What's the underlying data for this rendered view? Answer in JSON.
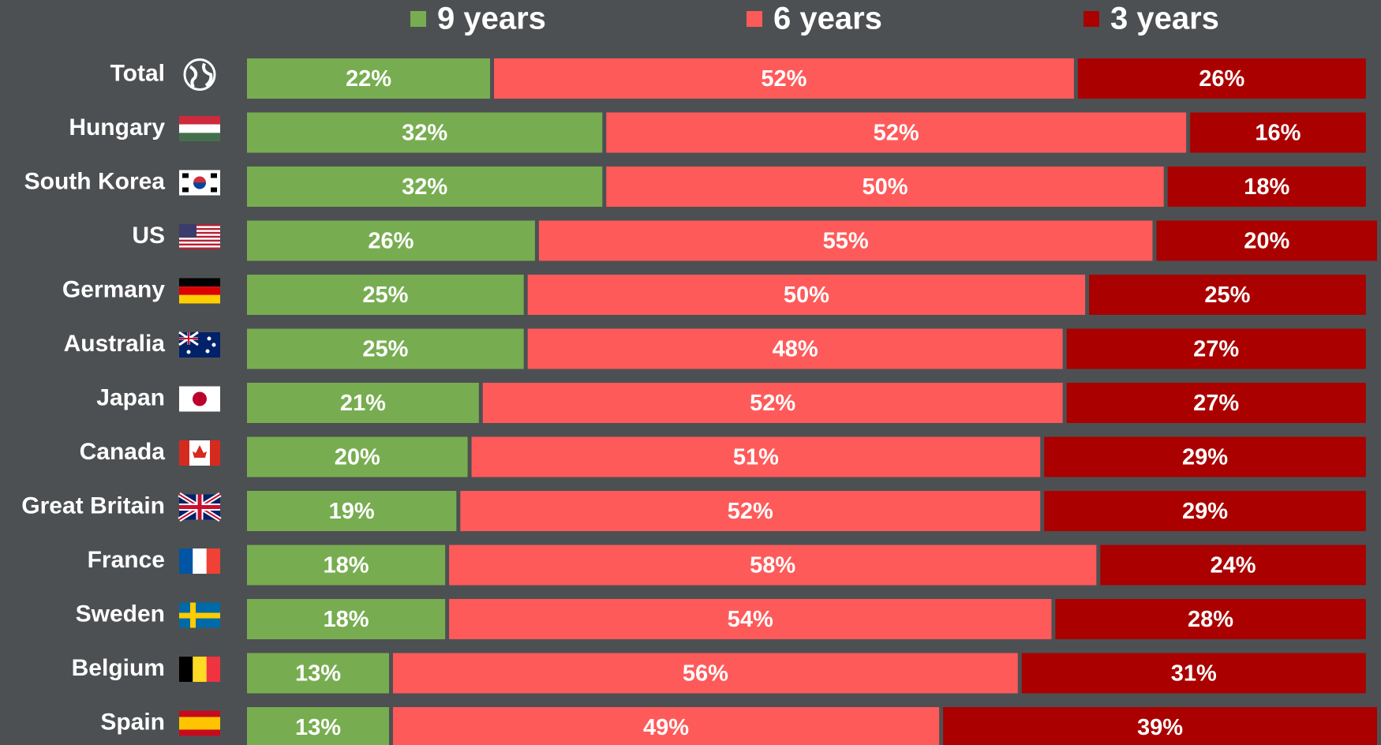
{
  "chart_data": {
    "type": "stacked-bar-horizontal",
    "categories": [
      "Total",
      "Hungary",
      "South Korea",
      "US",
      "Germany",
      "Australia",
      "Japan",
      "Canada",
      "Great Britain",
      "France",
      "Sweden",
      "Belgium",
      "Spain"
    ],
    "series": [
      {
        "name": "9 years",
        "color": "#77ad50",
        "values": [
          22,
          32,
          32,
          26,
          25,
          25,
          21,
          20,
          19,
          18,
          18,
          13,
          13
        ],
        "value_labels": [
          "22%",
          "32%",
          "32%",
          "26%",
          "25%",
          "25%",
          "21%",
          "20%",
          "19%",
          "18%",
          "18%",
          "13%",
          "13%"
        ]
      },
      {
        "name": "6 years",
        "color": "#ff5a5a",
        "values": [
          52,
          52,
          50,
          55,
          50,
          48,
          52,
          51,
          52,
          58,
          54,
          56,
          49
        ],
        "value_labels": [
          "52%",
          "52%",
          "50%",
          "55%",
          "50%",
          "48%",
          "52%",
          "51%",
          "52%",
          "58%",
          "54%",
          "56%",
          "49%"
        ]
      },
      {
        "name": "3 years",
        "color": "#aa0000",
        "values": [
          26,
          16,
          18,
          20,
          25,
          27,
          27,
          29,
          29,
          24,
          28,
          31,
          39
        ],
        "value_labels": [
          "26%",
          "16%",
          "18%",
          "20%",
          "25%",
          "27%",
          "27%",
          "29%",
          "29%",
          "24%",
          "28%",
          "31%",
          "39%"
        ]
      }
    ],
    "legend": "top"
  }
}
